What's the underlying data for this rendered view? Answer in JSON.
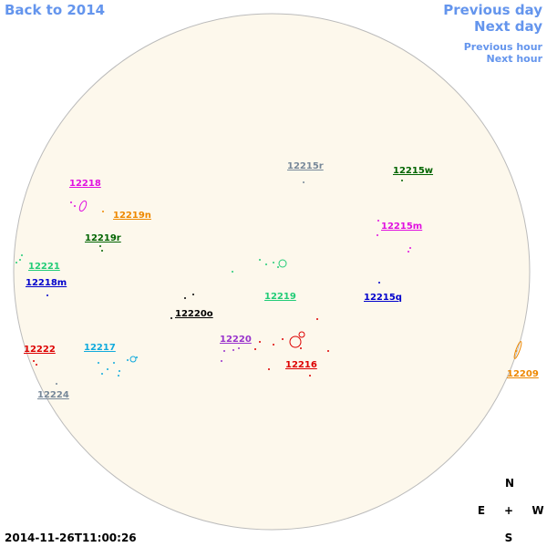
{
  "nav": {
    "back": "Back to 2014",
    "prev_day": "Previous day",
    "next_day": "Next day",
    "prev_hour": "Previous hour",
    "next_hour": "Next hour"
  },
  "regions": [
    {
      "label": "12215r",
      "color": "#778899"
    },
    {
      "label": "12215w",
      "color": "#006400"
    },
    {
      "label": "12218",
      "color": "#e010e0"
    },
    {
      "label": "12219n",
      "color": "#ee8800"
    },
    {
      "label": "12215m",
      "color": "#e010e0"
    },
    {
      "label": "12219r",
      "color": "#006400"
    },
    {
      "label": "12221",
      "color": "#22cc77"
    },
    {
      "label": "12218m",
      "color": "#0000cc"
    },
    {
      "label": "12219",
      "color": "#22cc77"
    },
    {
      "label": "12215q",
      "color": "#0000cc"
    },
    {
      "label": "12220o",
      "color": "#000000"
    },
    {
      "label": "12220",
      "color": "#9933cc"
    },
    {
      "label": "12217",
      "color": "#11aadd"
    },
    {
      "label": "12222",
      "color": "#dd0000"
    },
    {
      "label": "12216",
      "color": "#dd0000"
    },
    {
      "label": "12209",
      "color": "#ee8800"
    },
    {
      "label": "12224",
      "color": "#778899"
    }
  ],
  "compass": {
    "north": "N",
    "east": "E",
    "center": "+",
    "west": "W",
    "south": "S"
  },
  "timestamp": "2014-11-26T11:00:26"
}
